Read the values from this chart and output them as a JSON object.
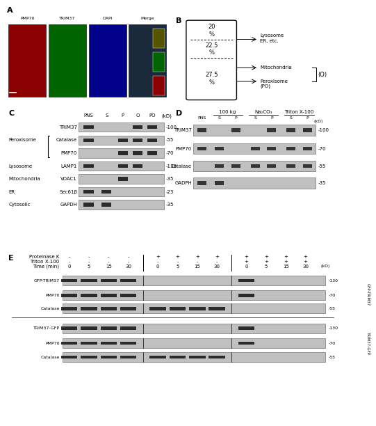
{
  "panel_A_labels": [
    "PMP70",
    "TRIM37",
    "DAPI",
    "Merge"
  ],
  "panel_A_colors": [
    "#8b0000",
    "#006400",
    "#00008b",
    "#1a2a3a"
  ],
  "panel_B_fractions": [
    "20\n%",
    "22.5\n%",
    "27.5\n%"
  ],
  "panel_C_headers": [
    "PNS",
    "S",
    "P",
    "O",
    "PO",
    "(kD)"
  ],
  "panel_C_rows": [
    {
      "label": "TRIM37",
      "cat": "",
      "mw": "100",
      "bands": [
        0,
        3,
        4
      ]
    },
    {
      "label": "Catalase",
      "cat": "Peroxisome",
      "mw": "55",
      "bands": [
        0,
        2,
        3,
        4
      ]
    },
    {
      "label": "PMP70",
      "cat": "",
      "mw": "70",
      "bands": [
        2,
        3,
        4
      ]
    },
    {
      "label": "LAMP1",
      "cat": "Lysosome",
      "mw": "130",
      "bands": [
        0,
        2,
        3
      ]
    },
    {
      "label": "VDAC1",
      "cat": "Mitochondria",
      "mw": "35",
      "bands": [
        2
      ]
    },
    {
      "label": "Sec61β",
      "cat": "ER",
      "mw": "23",
      "bands": [
        0,
        1
      ]
    },
    {
      "label": "GAPDH",
      "cat": "Cytosolic",
      "mw": "35",
      "bands": [
        0,
        1
      ]
    }
  ],
  "panel_D_header1_parts": [
    "100 kg",
    "Na₂CO₃",
    "Triton X-100"
  ],
  "panel_D_headers": [
    "PNS",
    "S",
    "P",
    "S",
    "P",
    "S",
    "P",
    "(kD)"
  ],
  "panel_D_rows": [
    {
      "label": "TRIM37",
      "mw": "100",
      "bands": [
        0,
        2,
        4,
        5,
        6
      ]
    },
    {
      "label": "PMP70",
      "mw": "70",
      "bands": [
        0,
        1,
        3,
        4,
        5,
        6
      ]
    },
    {
      "label": "Catalase",
      "mw": "55",
      "bands": [
        1,
        2,
        3,
        4,
        5,
        6
      ]
    },
    {
      "label": "GADPH",
      "mw": "35",
      "bands": [
        0,
        1
      ]
    }
  ],
  "panel_E_rows_top": [
    {
      "label": "GFP-TRIM37",
      "mw": "130"
    },
    {
      "label": "PMP70",
      "mw": "70"
    },
    {
      "label": "Catalase",
      "mw": "55"
    }
  ],
  "panel_E_rows_bottom": [
    {
      "label": "TRIM37-GFP",
      "mw": "130"
    },
    {
      "label": "PMP70",
      "mw": "70"
    },
    {
      "label": "Catalase",
      "mw": "55"
    }
  ],
  "gel_bg": "#c0c0c0",
  "band_dark": "#111111",
  "bg_color": "#ffffff"
}
